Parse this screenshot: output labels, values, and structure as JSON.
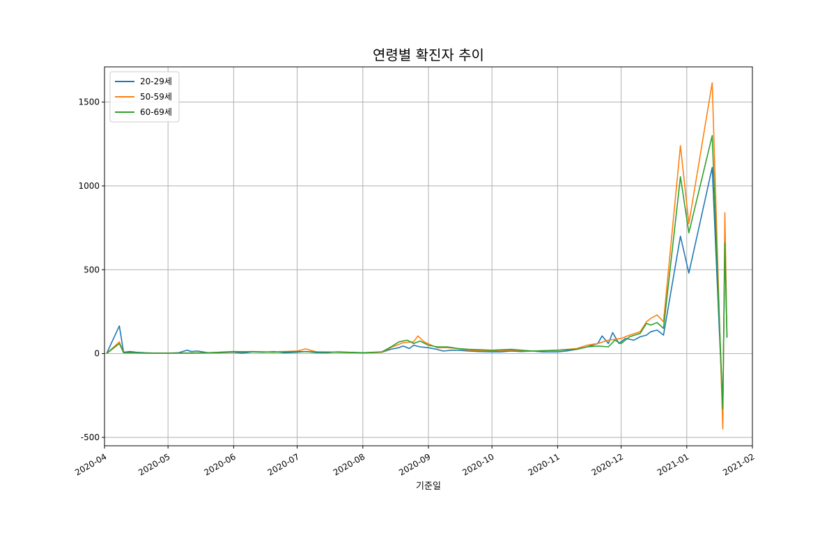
{
  "chart_data": {
    "type": "line",
    "title": "연령별 확진자 추이",
    "xlabel": "기준일",
    "ylabel": "",
    "x_axis_type": "date",
    "xlim": [
      "2020-04-01",
      "2021-02-01"
    ],
    "ylim": [
      -550,
      1710
    ],
    "x_ticks": [
      "2020-04",
      "2020-05",
      "2020-06",
      "2020-07",
      "2020-08",
      "2020-09",
      "2020-10",
      "2020-11",
      "2020-12",
      "2021-01",
      "2021-02"
    ],
    "y_ticks": [
      -500,
      0,
      500,
      1000,
      1500
    ],
    "grid": true,
    "legend_position": "upper-left",
    "series": [
      {
        "name": "20-29세",
        "color": "#1f77b4",
        "points": [
          [
            "2020-04-02",
            0
          ],
          [
            "2020-04-08",
            165
          ],
          [
            "2020-04-10",
            8
          ],
          [
            "2020-04-13",
            12
          ],
          [
            "2020-04-16",
            8
          ],
          [
            "2020-04-20",
            5
          ],
          [
            "2020-04-25",
            3
          ],
          [
            "2020-05-01",
            2
          ],
          [
            "2020-05-06",
            5
          ],
          [
            "2020-05-10",
            20
          ],
          [
            "2020-05-12",
            12
          ],
          [
            "2020-05-15",
            15
          ],
          [
            "2020-05-20",
            5
          ],
          [
            "2020-05-25",
            5
          ],
          [
            "2020-06-01",
            8
          ],
          [
            "2020-06-05",
            3
          ],
          [
            "2020-06-10",
            10
          ],
          [
            "2020-06-15",
            8
          ],
          [
            "2020-06-20",
            12
          ],
          [
            "2020-06-25",
            5
          ],
          [
            "2020-07-01",
            8
          ],
          [
            "2020-07-05",
            12
          ],
          [
            "2020-07-10",
            6
          ],
          [
            "2020-07-15",
            5
          ],
          [
            "2020-07-20",
            10
          ],
          [
            "2020-07-25",
            8
          ],
          [
            "2020-08-01",
            5
          ],
          [
            "2020-08-05",
            6
          ],
          [
            "2020-08-10",
            8
          ],
          [
            "2020-08-14",
            25
          ],
          [
            "2020-08-18",
            35
          ],
          [
            "2020-08-20",
            45
          ],
          [
            "2020-08-23",
            30
          ],
          [
            "2020-08-25",
            50
          ],
          [
            "2020-08-28",
            40
          ],
          [
            "2020-09-01",
            35
          ],
          [
            "2020-09-05",
            25
          ],
          [
            "2020-09-08",
            15
          ],
          [
            "2020-09-12",
            20
          ],
          [
            "2020-09-15",
            20
          ],
          [
            "2020-09-20",
            15
          ],
          [
            "2020-09-25",
            12
          ],
          [
            "2020-10-01",
            10
          ],
          [
            "2020-10-05",
            10
          ],
          [
            "2020-10-10",
            15
          ],
          [
            "2020-10-15",
            12
          ],
          [
            "2020-10-20",
            15
          ],
          [
            "2020-10-25",
            10
          ],
          [
            "2020-11-01",
            10
          ],
          [
            "2020-11-05",
            15
          ],
          [
            "2020-11-10",
            25
          ],
          [
            "2020-11-15",
            40
          ],
          [
            "2020-11-20",
            60
          ],
          [
            "2020-11-22",
            105
          ],
          [
            "2020-11-25",
            60
          ],
          [
            "2020-11-27",
            125
          ],
          [
            "2020-11-30",
            60
          ],
          [
            "2020-12-03",
            90
          ],
          [
            "2020-12-07",
            80
          ],
          [
            "2020-12-10",
            100
          ],
          [
            "2020-12-13",
            110
          ],
          [
            "2020-12-15",
            130
          ],
          [
            "2020-12-18",
            140
          ],
          [
            "2020-12-21",
            110
          ],
          [
            "2020-12-29",
            700
          ],
          [
            "2021-01-02",
            480
          ],
          [
            "2021-01-13",
            1110
          ],
          [
            "2021-01-18",
            -335
          ],
          [
            "2021-01-19",
            670
          ],
          [
            "2021-01-20",
            95
          ]
        ]
      },
      {
        "name": "50-59세",
        "color": "#ff7f0e",
        "points": [
          [
            "2020-04-02",
            0
          ],
          [
            "2020-04-08",
            70
          ],
          [
            "2020-04-10",
            5
          ],
          [
            "2020-04-15",
            5
          ],
          [
            "2020-04-20",
            3
          ],
          [
            "2020-05-01",
            2
          ],
          [
            "2020-05-10",
            3
          ],
          [
            "2020-05-20",
            5
          ],
          [
            "2020-06-01",
            10
          ],
          [
            "2020-06-10",
            12
          ],
          [
            "2020-06-20",
            10
          ],
          [
            "2020-07-01",
            15
          ],
          [
            "2020-07-05",
            28
          ],
          [
            "2020-07-10",
            10
          ],
          [
            "2020-07-20",
            8
          ],
          [
            "2020-08-01",
            5
          ],
          [
            "2020-08-10",
            8
          ],
          [
            "2020-08-15",
            40
          ],
          [
            "2020-08-20",
            65
          ],
          [
            "2020-08-25",
            70
          ],
          [
            "2020-08-27",
            105
          ],
          [
            "2020-08-30",
            70
          ],
          [
            "2020-09-05",
            35
          ],
          [
            "2020-09-10",
            35
          ],
          [
            "2020-09-15",
            30
          ],
          [
            "2020-09-20",
            20
          ],
          [
            "2020-10-01",
            15
          ],
          [
            "2020-10-10",
            20
          ],
          [
            "2020-10-20",
            15
          ],
          [
            "2020-11-01",
            20
          ],
          [
            "2020-11-10",
            30
          ],
          [
            "2020-11-15",
            50
          ],
          [
            "2020-11-20",
            60
          ],
          [
            "2020-11-25",
            80
          ],
          [
            "2020-12-01",
            90
          ],
          [
            "2020-12-05",
            110
          ],
          [
            "2020-12-10",
            130
          ],
          [
            "2020-12-13",
            190
          ],
          [
            "2020-12-15",
            210
          ],
          [
            "2020-12-18",
            230
          ],
          [
            "2020-12-21",
            190
          ],
          [
            "2020-12-29",
            1240
          ],
          [
            "2021-01-02",
            775
          ],
          [
            "2021-01-13",
            1615
          ],
          [
            "2021-01-18",
            -450
          ],
          [
            "2021-01-19",
            840
          ],
          [
            "2021-01-20",
            100
          ]
        ]
      },
      {
        "name": "60-69세",
        "color": "#2ca02c",
        "points": [
          [
            "2020-04-02",
            0
          ],
          [
            "2020-04-08",
            60
          ],
          [
            "2020-04-10",
            5
          ],
          [
            "2020-04-15",
            5
          ],
          [
            "2020-04-20",
            3
          ],
          [
            "2020-05-01",
            2
          ],
          [
            "2020-05-10",
            3
          ],
          [
            "2020-05-20",
            5
          ],
          [
            "2020-06-01",
            12
          ],
          [
            "2020-06-10",
            10
          ],
          [
            "2020-06-20",
            8
          ],
          [
            "2020-07-01",
            12
          ],
          [
            "2020-07-10",
            10
          ],
          [
            "2020-07-20",
            8
          ],
          [
            "2020-08-01",
            5
          ],
          [
            "2020-08-10",
            10
          ],
          [
            "2020-08-15",
            45
          ],
          [
            "2020-08-18",
            70
          ],
          [
            "2020-08-22",
            80
          ],
          [
            "2020-08-25",
            60
          ],
          [
            "2020-08-28",
            75
          ],
          [
            "2020-09-01",
            50
          ],
          [
            "2020-09-05",
            40
          ],
          [
            "2020-09-10",
            40
          ],
          [
            "2020-09-15",
            30
          ],
          [
            "2020-09-20",
            25
          ],
          [
            "2020-10-01",
            20
          ],
          [
            "2020-10-10",
            25
          ],
          [
            "2020-10-20",
            15
          ],
          [
            "2020-11-01",
            20
          ],
          [
            "2020-11-10",
            25
          ],
          [
            "2020-11-15",
            40
          ],
          [
            "2020-11-20",
            45
          ],
          [
            "2020-11-25",
            40
          ],
          [
            "2020-11-28",
            80
          ],
          [
            "2020-12-01",
            60
          ],
          [
            "2020-12-05",
            100
          ],
          [
            "2020-12-10",
            120
          ],
          [
            "2020-12-13",
            180
          ],
          [
            "2020-12-15",
            170
          ],
          [
            "2020-12-18",
            185
          ],
          [
            "2020-12-21",
            150
          ],
          [
            "2020-12-29",
            1055
          ],
          [
            "2021-01-02",
            720
          ],
          [
            "2021-01-13",
            1300
          ],
          [
            "2021-01-18",
            -330
          ],
          [
            "2021-01-19",
            660
          ],
          [
            "2021-01-20",
            95
          ]
        ]
      }
    ]
  }
}
